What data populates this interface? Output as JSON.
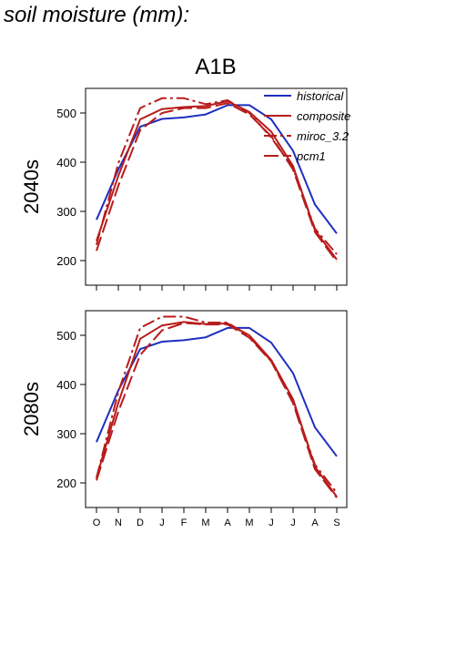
{
  "page": {
    "title": "soil moisture (mm):"
  },
  "colors": {
    "historical": "#1f2fbf",
    "future": "#b81c1c",
    "axis": "#000000"
  },
  "chart_data": {
    "type": "line",
    "title": "A1B",
    "categories": [
      "O",
      "N",
      "D",
      "J",
      "F",
      "M",
      "A",
      "M",
      "J",
      "J",
      "A",
      "S"
    ],
    "ylim": [
      150,
      550
    ],
    "yticks": [
      200,
      300,
      400,
      500
    ],
    "legend": {
      "placement": "top-right",
      "entries": [
        "historical",
        "composite",
        "miroc_3.2",
        "pcm1"
      ]
    },
    "panels": [
      {
        "label": "2040s",
        "series": [
          {
            "name": "historical",
            "style": "solid",
            "color": "historical",
            "values": [
              283,
              385,
              472,
              488,
              491,
              497,
              516,
              516,
              487,
              423,
              314,
              255
            ]
          },
          {
            "name": "composite",
            "style": "solid",
            "color": "future",
            "values": [
              240,
              372,
              487,
              508,
              512,
              514,
              524,
              502,
              462,
              392,
              262,
              202
            ]
          },
          {
            "name": "miroc_3.2",
            "style": "dashdot",
            "color": "future",
            "values": [
              232,
              398,
              510,
              530,
              530,
              518,
              526,
              500,
              450,
              388,
              265,
              213
            ]
          },
          {
            "name": "pcm1",
            "style": "dashed",
            "color": "future",
            "values": [
              220,
              352,
              465,
              500,
              510,
              510,
              520,
              497,
              453,
              385,
              258,
              198
            ]
          }
        ]
      },
      {
        "label": "2080s",
        "series": [
          {
            "name": "historical",
            "style": "solid",
            "color": "historical",
            "values": [
              283,
              388,
              472,
              487,
              490,
              496,
              515,
              515,
              485,
              423,
              313,
              254
            ]
          },
          {
            "name": "composite",
            "style": "solid",
            "color": "future",
            "values": [
              210,
              363,
              493,
              520,
              527,
              523,
              524,
              500,
              450,
              370,
              233,
              172
            ]
          },
          {
            "name": "miroc_3.2",
            "style": "dashdot",
            "color": "future",
            "values": [
              210,
              385,
              515,
              538,
              538,
              526,
              526,
              497,
              448,
              365,
              237,
              180
            ]
          },
          {
            "name": "pcm1",
            "style": "dashed",
            "color": "future",
            "values": [
              205,
              345,
              460,
              510,
              525,
              522,
              522,
              495,
              447,
              362,
              228,
              170
            ]
          }
        ]
      }
    ]
  }
}
